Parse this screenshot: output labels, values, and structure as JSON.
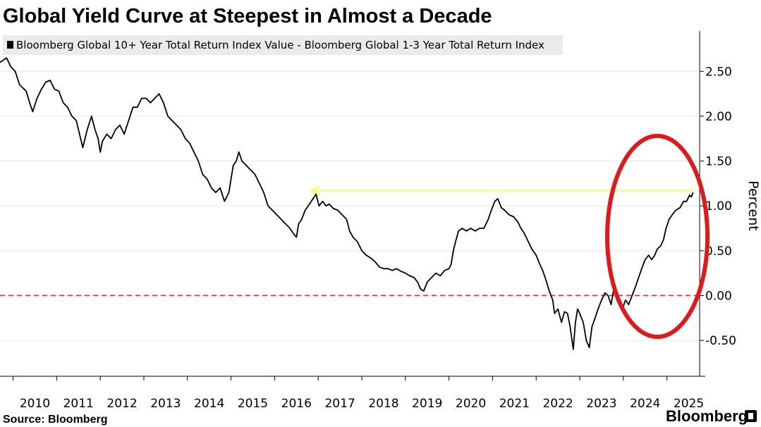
{
  "chart_data": {
    "type": "line",
    "title": "Global Yield Curve at Steepest in Almost a Decade",
    "legend": "Bloomberg Global 10+ Year Total Return Index Value - Bloomberg Global 1-3 Year Total Return Index",
    "ylabel": "Percent",
    "ylim": [
      -0.9,
      2.95
    ],
    "xlim": [
      2009.7,
      2025.75
    ],
    "y_ticks": [
      "2.50",
      "2.00",
      "1.50",
      "1.00",
      "0.50",
      "0.00",
      "-0.50"
    ],
    "y_tick_values": [
      2.5,
      2.0,
      1.5,
      1.0,
      0.5,
      0.0,
      -0.5
    ],
    "x_ticks": [
      "2010",
      "2011",
      "2012",
      "2013",
      "2014",
      "2015",
      "2016",
      "2017",
      "2018",
      "2019",
      "2020",
      "2021",
      "2022",
      "2023",
      "2024",
      "2025"
    ],
    "series": [
      {
        "color": "#000000",
        "points": [
          [
            2009.7,
            2.6
          ],
          [
            2009.85,
            2.65
          ],
          [
            2009.95,
            2.55
          ],
          [
            2010.05,
            2.5
          ],
          [
            2010.15,
            2.35
          ],
          [
            2010.3,
            2.28
          ],
          [
            2010.38,
            2.15
          ],
          [
            2010.45,
            2.05
          ],
          [
            2010.55,
            2.2
          ],
          [
            2010.65,
            2.3
          ],
          [
            2010.75,
            2.38
          ],
          [
            2010.85,
            2.4
          ],
          [
            2010.95,
            2.3
          ],
          [
            2011.05,
            2.28
          ],
          [
            2011.15,
            2.15
          ],
          [
            2011.25,
            2.1
          ],
          [
            2011.35,
            2.0
          ],
          [
            2011.45,
            1.95
          ],
          [
            2011.55,
            1.75
          ],
          [
            2011.6,
            1.65
          ],
          [
            2011.7,
            1.85
          ],
          [
            2011.8,
            2.0
          ],
          [
            2011.88,
            1.85
          ],
          [
            2011.95,
            1.75
          ],
          [
            2012.0,
            1.6
          ],
          [
            2012.05,
            1.72
          ],
          [
            2012.15,
            1.8
          ],
          [
            2012.25,
            1.75
          ],
          [
            2012.35,
            1.85
          ],
          [
            2012.45,
            1.9
          ],
          [
            2012.55,
            1.8
          ],
          [
            2012.65,
            1.95
          ],
          [
            2012.75,
            2.1
          ],
          [
            2012.85,
            2.1
          ],
          [
            2012.95,
            2.2
          ],
          [
            2013.05,
            2.2
          ],
          [
            2013.15,
            2.15
          ],
          [
            2013.25,
            2.2
          ],
          [
            2013.35,
            2.25
          ],
          [
            2013.45,
            2.15
          ],
          [
            2013.55,
            2.0
          ],
          [
            2013.65,
            1.95
          ],
          [
            2013.75,
            1.9
          ],
          [
            2013.85,
            1.85
          ],
          [
            2013.95,
            1.75
          ],
          [
            2014.05,
            1.7
          ],
          [
            2014.15,
            1.6
          ],
          [
            2014.25,
            1.5
          ],
          [
            2014.35,
            1.35
          ],
          [
            2014.45,
            1.3
          ],
          [
            2014.55,
            1.2
          ],
          [
            2014.65,
            1.15
          ],
          [
            2014.75,
            1.2
          ],
          [
            2014.85,
            1.05
          ],
          [
            2014.95,
            1.15
          ],
          [
            2015.0,
            1.3
          ],
          [
            2015.05,
            1.45
          ],
          [
            2015.12,
            1.5
          ],
          [
            2015.18,
            1.6
          ],
          [
            2015.25,
            1.5
          ],
          [
            2015.35,
            1.45
          ],
          [
            2015.45,
            1.4
          ],
          [
            2015.55,
            1.35
          ],
          [
            2015.65,
            1.25
          ],
          [
            2015.75,
            1.15
          ],
          [
            2015.85,
            1.0
          ],
          [
            2015.95,
            0.95
          ],
          [
            2016.05,
            0.9
          ],
          [
            2016.15,
            0.85
          ],
          [
            2016.25,
            0.8
          ],
          [
            2016.35,
            0.75
          ],
          [
            2016.42,
            0.7
          ],
          [
            2016.5,
            0.65
          ],
          [
            2016.55,
            0.8
          ],
          [
            2016.62,
            0.85
          ],
          [
            2016.7,
            0.95
          ],
          [
            2016.8,
            1.02
          ],
          [
            2016.88,
            1.08
          ],
          [
            2016.95,
            1.13
          ],
          [
            2017.02,
            1.0
          ],
          [
            2017.1,
            1.05
          ],
          [
            2017.18,
            1.0
          ],
          [
            2017.25,
            1.02
          ],
          [
            2017.35,
            0.97
          ],
          [
            2017.45,
            0.95
          ],
          [
            2017.55,
            0.9
          ],
          [
            2017.65,
            0.85
          ],
          [
            2017.72,
            0.72
          ],
          [
            2017.8,
            0.65
          ],
          [
            2017.9,
            0.6
          ],
          [
            2018.0,
            0.5
          ],
          [
            2018.1,
            0.45
          ],
          [
            2018.2,
            0.42
          ],
          [
            2018.3,
            0.38
          ],
          [
            2018.4,
            0.32
          ],
          [
            2018.5,
            0.3
          ],
          [
            2018.6,
            0.3
          ],
          [
            2018.7,
            0.28
          ],
          [
            2018.8,
            0.3
          ],
          [
            2018.9,
            0.27
          ],
          [
            2019.0,
            0.25
          ],
          [
            2019.1,
            0.22
          ],
          [
            2019.2,
            0.2
          ],
          [
            2019.28,
            0.15
          ],
          [
            2019.35,
            0.07
          ],
          [
            2019.42,
            0.05
          ],
          [
            2019.5,
            0.15
          ],
          [
            2019.6,
            0.2
          ],
          [
            2019.7,
            0.25
          ],
          [
            2019.8,
            0.22
          ],
          [
            2019.9,
            0.28
          ],
          [
            2020.0,
            0.3
          ],
          [
            2020.05,
            0.35
          ],
          [
            2020.1,
            0.5
          ],
          [
            2020.15,
            0.6
          ],
          [
            2020.22,
            0.72
          ],
          [
            2020.3,
            0.75
          ],
          [
            2020.4,
            0.72
          ],
          [
            2020.5,
            0.75
          ],
          [
            2020.6,
            0.72
          ],
          [
            2020.7,
            0.75
          ],
          [
            2020.8,
            0.75
          ],
          [
            2020.9,
            0.85
          ],
          [
            2020.97,
            0.95
          ],
          [
            2021.05,
            1.05
          ],
          [
            2021.12,
            1.08
          ],
          [
            2021.2,
            0.98
          ],
          [
            2021.28,
            0.95
          ],
          [
            2021.38,
            0.9
          ],
          [
            2021.48,
            0.88
          ],
          [
            2021.58,
            0.82
          ],
          [
            2021.65,
            0.75
          ],
          [
            2021.72,
            0.7
          ],
          [
            2021.8,
            0.62
          ],
          [
            2021.9,
            0.52
          ],
          [
            2022.0,
            0.45
          ],
          [
            2022.08,
            0.35
          ],
          [
            2022.15,
            0.28
          ],
          [
            2022.22,
            0.18
          ],
          [
            2022.3,
            0.05
          ],
          [
            2022.38,
            -0.05
          ],
          [
            2022.42,
            -0.2
          ],
          [
            2022.5,
            -0.15
          ],
          [
            2022.58,
            -0.3
          ],
          [
            2022.65,
            -0.18
          ],
          [
            2022.72,
            -0.2
          ],
          [
            2022.78,
            -0.35
          ],
          [
            2022.85,
            -0.6
          ],
          [
            2022.9,
            -0.3
          ],
          [
            2022.95,
            -0.15
          ],
          [
            2023.0,
            -0.2
          ],
          [
            2023.08,
            -0.3
          ],
          [
            2023.15,
            -0.5
          ],
          [
            2023.22,
            -0.58
          ],
          [
            2023.28,
            -0.35
          ],
          [
            2023.35,
            -0.25
          ],
          [
            2023.42,
            -0.15
          ],
          [
            2023.5,
            -0.05
          ],
          [
            2023.58,
            0.03
          ],
          [
            2023.65,
            0.0
          ],
          [
            2023.72,
            -0.1
          ],
          [
            2023.78,
            0.07
          ],
          [
            2023.85,
            -0.05
          ],
          [
            2023.9,
            -0.1
          ],
          [
            2023.98,
            -0.15
          ],
          [
            2024.05,
            -0.05
          ],
          [
            2024.12,
            -0.1
          ],
          [
            2024.2,
            0.0
          ],
          [
            2024.28,
            0.1
          ],
          [
            2024.35,
            0.2
          ],
          [
            2024.42,
            0.3
          ],
          [
            2024.5,
            0.4
          ],
          [
            2024.58,
            0.45
          ],
          [
            2024.65,
            0.4
          ],
          [
            2024.72,
            0.45
          ],
          [
            2024.78,
            0.52
          ],
          [
            2024.85,
            0.55
          ],
          [
            2024.92,
            0.62
          ],
          [
            2024.98,
            0.75
          ],
          [
            2025.05,
            0.85
          ],
          [
            2025.12,
            0.9
          ],
          [
            2025.2,
            0.95
          ],
          [
            2025.3,
            0.98
          ],
          [
            2025.38,
            1.05
          ],
          [
            2025.45,
            1.05
          ],
          [
            2025.52,
            1.12
          ],
          [
            2025.56,
            1.1
          ],
          [
            2025.6,
            1.15
          ]
        ]
      }
    ],
    "annotations": [
      {
        "kind": "hline",
        "y": 0.0,
        "color": "#dd2a2a",
        "style": "dashed"
      },
      {
        "kind": "arrow",
        "y": 1.17,
        "x_from": 2025.6,
        "x_to": 2016.85,
        "color": "#ffff44"
      },
      {
        "kind": "ellipse",
        "cx": 2024.78,
        "cy": 0.66,
        "rx": 1.15,
        "ry": 1.12,
        "color": "#e01a1a"
      }
    ]
  },
  "footer": {
    "source": "Source: Bloomberg",
    "brand": "Bloomberg"
  }
}
